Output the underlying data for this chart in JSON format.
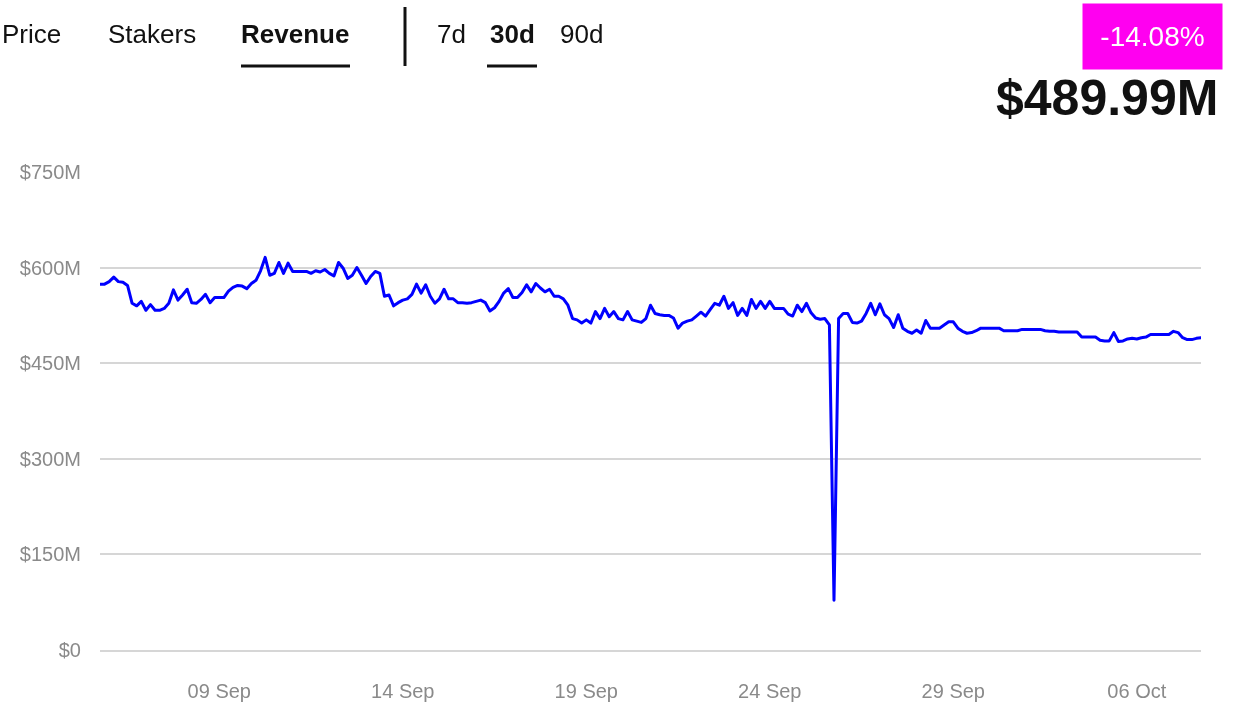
{
  "chart_data": {
    "type": "line",
    "categories": [
      null,
      null,
      null,
      null,
      null,
      null,
      null,
      null,
      null,
      null,
      null,
      null,
      null,
      null,
      null,
      null,
      null,
      null,
      null,
      null,
      null,
      null,
      null,
      null,
      null,
      null,
      "09 Sep",
      null,
      null,
      null,
      null,
      null,
      null,
      null,
      null,
      null,
      null,
      null,
      null,
      null,
      null,
      null,
      null,
      null,
      null,
      null,
      null,
      null,
      null,
      null,
      null,
      null,
      null,
      null,
      null,
      null,
      null,
      null,
      null,
      null,
      null,
      null,
      null,
      null,
      null,
      null,
      "14 Sep",
      null,
      null,
      null,
      null,
      null,
      null,
      null,
      null,
      null,
      null,
      null,
      null,
      null,
      null,
      null,
      null,
      null,
      null,
      null,
      null,
      null,
      null,
      null,
      null,
      null,
      null,
      null,
      null,
      null,
      null,
      null,
      null,
      null,
      null,
      null,
      null,
      null,
      null,
      null,
      "19 Sep",
      null,
      null,
      null,
      null,
      null,
      null,
      null,
      null,
      null,
      null,
      null,
      null,
      null,
      null,
      null,
      null,
      null,
      null,
      null,
      null,
      null,
      null,
      null,
      null,
      null,
      null,
      null,
      null,
      null,
      null,
      null,
      null,
      null,
      null,
      null,
      null,
      null,
      null,
      null,
      "24 Sep",
      null,
      null,
      null,
      null,
      null,
      null,
      null,
      null,
      null,
      null,
      null,
      null,
      null,
      null,
      null,
      null,
      null,
      null,
      null,
      null,
      null,
      null,
      null,
      null,
      null,
      null,
      null,
      null,
      null,
      null,
      null,
      null,
      null,
      null,
      null,
      null,
      null,
      null,
      null,
      "29 Sep",
      null,
      null,
      null,
      null,
      null,
      null,
      null,
      null,
      null,
      null,
      null,
      null,
      null,
      null,
      null,
      null,
      null,
      null,
      null,
      null,
      null,
      null,
      null,
      null,
      null,
      null,
      null,
      null,
      null,
      null,
      null,
      null,
      null,
      null,
      null,
      null,
      null,
      null,
      null,
      "06 Oct",
      null,
      null,
      null,
      null,
      null,
      null,
      null,
      null,
      null,
      null,
      null,
      null,
      null,
      null
    ],
    "series": [
      {
        "color": "#0000ff",
        "values": [
          574,
          574,
          578,
          585,
          578,
          577,
          572,
          544,
          540,
          547,
          533,
          542,
          533,
          533,
          536,
          544,
          565,
          549,
          557,
          566,
          545,
          544,
          550,
          558,
          545,
          553,
          553,
          553,
          563,
          569,
          572,
          571,
          567,
          575,
          580,
          595,
          616,
          588,
          591,
          608,
          591,
          607,
          594,
          594,
          594,
          594,
          591,
          595,
          593,
          597,
          591,
          587,
          608,
          599,
          583,
          588,
          600,
          588,
          575,
          586,
          594,
          591,
          555,
          557,
          540,
          545,
          549,
          551,
          558,
          574,
          560,
          573,
          555,
          544,
          551,
          566,
          551,
          551,
          545,
          545,
          544,
          545,
          547,
          549,
          545,
          532,
          537,
          547,
          560,
          567,
          553,
          553,
          561,
          573,
          562,
          575,
          568,
          562,
          566,
          555,
          555,
          551,
          541,
          520,
          518,
          513,
          518,
          513,
          531,
          520,
          536,
          523,
          531,
          520,
          518,
          531,
          518,
          516,
          514,
          520,
          541,
          528,
          526,
          525,
          525,
          521,
          505,
          513,
          516,
          518,
          524,
          530,
          524,
          534,
          544,
          541,
          555,
          536,
          545,
          525,
          536,
          525,
          550,
          536,
          547,
          536,
          547,
          536,
          536,
          536,
          527,
          524,
          541,
          531,
          544,
          529,
          521,
          519,
          520,
          510,
          78,
          520,
          528,
          528,
          514,
          513,
          516,
          528,
          544,
          526,
          543,
          526,
          520,
          506,
          526,
          505,
          500,
          497,
          502,
          497,
          517,
          505,
          505,
          505,
          510,
          515,
          515,
          505,
          500,
          497,
          498,
          501,
          505,
          505,
          505,
          505,
          505,
          501,
          501,
          501,
          501,
          503,
          503,
          503,
          503,
          503,
          501,
          500,
          500,
          499,
          499,
          499,
          499,
          499,
          491,
          491,
          491,
          491,
          486,
          485,
          485,
          498,
          484,
          485,
          488,
          489,
          488,
          490,
          491,
          495,
          495,
          495,
          495,
          495,
          500,
          498,
          490,
          487,
          487,
          489,
          490
        ]
      }
    ],
    "ylim": [
      0,
      750
    ],
    "yticks": [
      {
        "value": 0,
        "label": "$0"
      },
      {
        "value": 150,
        "label": "$150M"
      },
      {
        "value": 300,
        "label": "$300M"
      },
      {
        "value": 450,
        "label": "$450M"
      },
      {
        "value": 600,
        "label": "$600M"
      },
      {
        "value": 750,
        "label": "$750M"
      }
    ],
    "grid": "y",
    "line_style": "solid",
    "annotations": [
      "Price",
      "Stakers",
      "Revenue",
      "7d",
      "30d",
      "90d",
      "-14.08%",
      "$489.99M"
    ]
  }
}
